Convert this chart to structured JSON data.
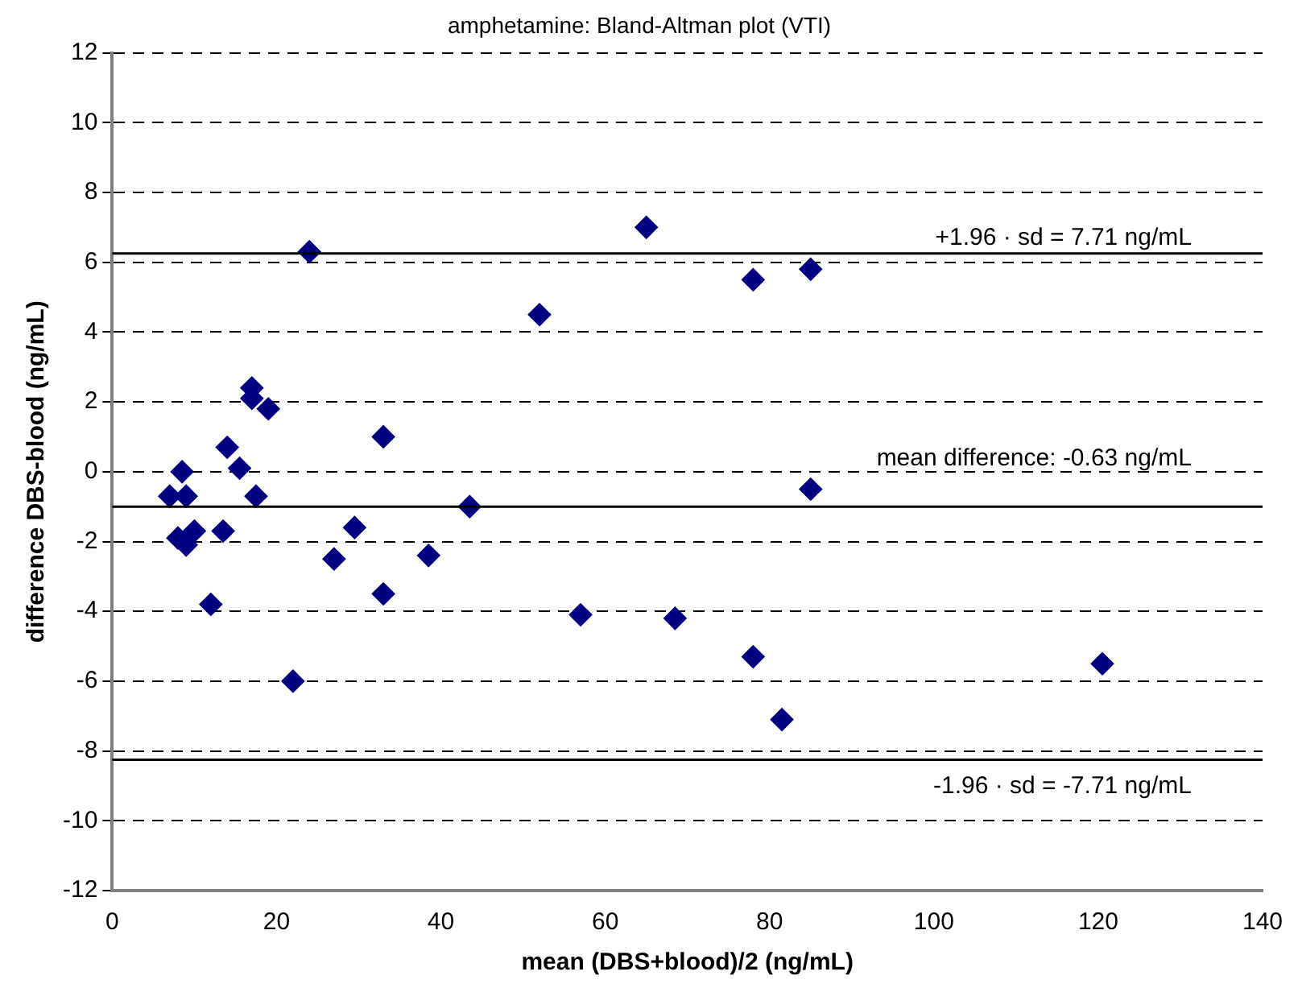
{
  "chart_data": {
    "type": "scatter",
    "title": "amphetamine: Bland-Altman plot (VTI)",
    "xlabel": "mean (DBS+blood)/2 (ng/mL)",
    "ylabel": "difference DBS-blood (ng/mL)",
    "x": [
      7,
      8,
      8.5,
      9,
      9,
      10,
      12,
      13.5,
      14,
      15.5,
      17,
      17,
      17.5,
      19,
      22,
      24,
      27,
      29.5,
      33,
      33,
      38.5,
      43.5,
      52,
      57,
      65,
      68.5,
      78,
      78,
      81.5,
      85,
      85,
      120.5
    ],
    "series": [
      {
        "color": "#000080",
        "values": [
          -0.7,
          -1.9,
          0,
          -0.7,
          -2.1,
          -1.7,
          -3.8,
          -1.7,
          0.7,
          0.1,
          2.4,
          2.1,
          -0.7,
          1.8,
          -6.0,
          6.3,
          -2.5,
          -1.6,
          1.0,
          -3.5,
          -2.4,
          -1.0,
          4.5,
          -4.1,
          7.0,
          -4.2,
          5.5,
          -5.3,
          -7.1,
          5.8,
          -0.5,
          -5.5
        ]
      }
    ],
    "xlim": [
      0,
      140
    ],
    "xticks": [
      0,
      20,
      40,
      60,
      80,
      100,
      120,
      140
    ],
    "ylim": [
      -12,
      12
    ],
    "yticks": [
      -12,
      -10,
      -8,
      -6,
      -4,
      -2,
      0,
      2,
      4,
      6,
      8,
      10,
      12
    ],
    "grid": "y",
    "marker": "diamond",
    "legend": false,
    "ref_lines": [
      {
        "axis": "y",
        "value": 6.25,
        "color": "#000000"
      },
      {
        "axis": "y",
        "value": -1.0,
        "color": "#000000"
      },
      {
        "axis": "y",
        "value": -8.25,
        "color": "#000000"
      }
    ],
    "annotations": [
      "+1.96 · sd = 7.71 ng/mL",
      "mean difference: -0.63 ng/mL",
      "-1.96 · sd = -7.71 ng/mL"
    ]
  }
}
